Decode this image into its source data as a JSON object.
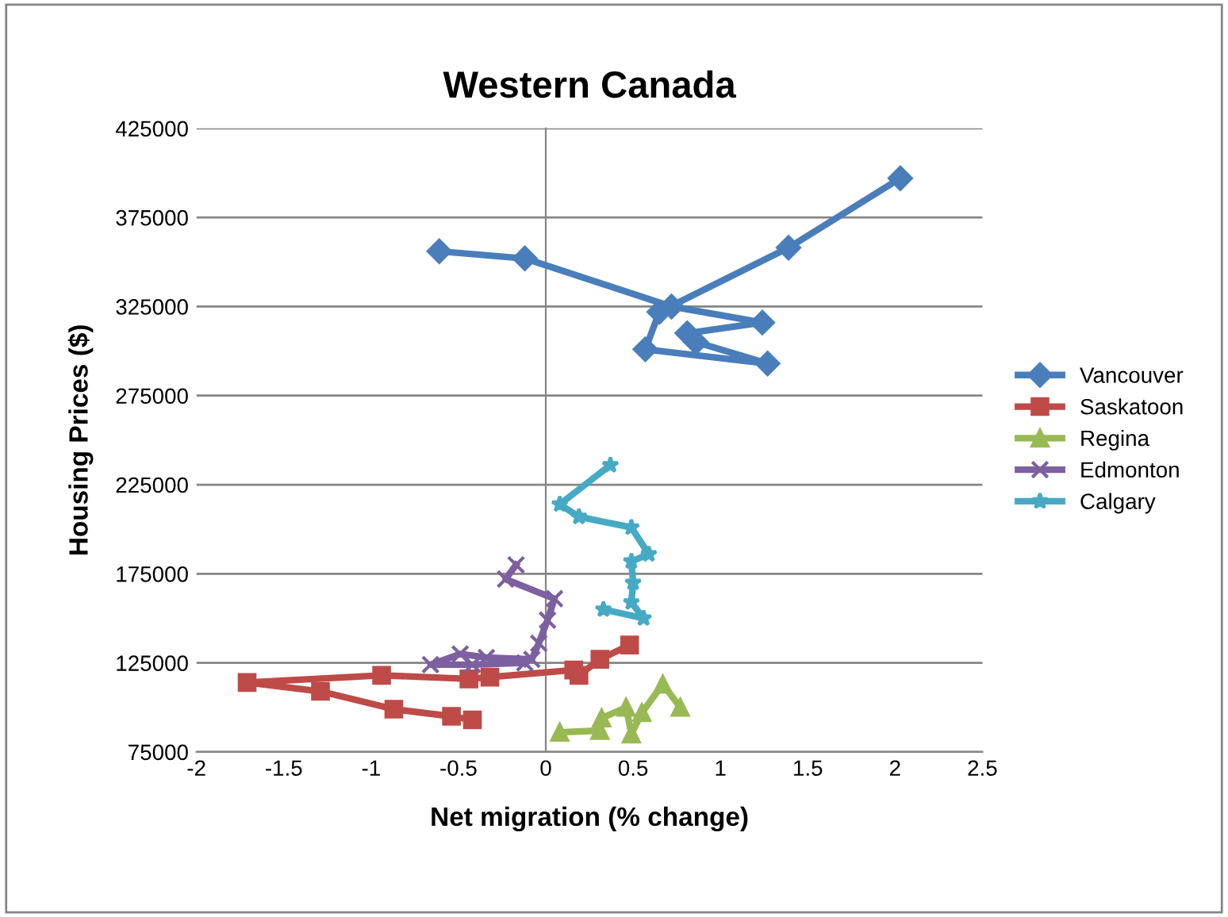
{
  "chart_data": {
    "type": "line",
    "title": "Western Canada",
    "xlabel": "Net migration (% change)",
    "ylabel": "Housing Prices ($)",
    "xlim": [
      -2,
      2.5
    ],
    "xticks": [
      -2,
      -1.5,
      -1,
      -0.5,
      0,
      0.5,
      1,
      1.5,
      2,
      2.5
    ],
    "ylim": [
      75000,
      425000
    ],
    "yticks": [
      75000,
      125000,
      175000,
      225000,
      275000,
      325000,
      375000,
      425000
    ],
    "grid": "y",
    "legend": "right",
    "line_style": "solid",
    "series": [
      {
        "name": "Vancouver",
        "color": "#4a7ebb",
        "marker": "diamond",
        "x": [
          -0.61,
          -0.12,
          0.72,
          1.24,
          0.81,
          0.86,
          1.27,
          0.57,
          0.65,
          1.39,
          2.03
        ],
        "values": [
          356000,
          352000,
          325000,
          316000,
          310000,
          305000,
          293000,
          301000,
          322000,
          358000,
          397000
        ]
      },
      {
        "name": "Saskatoon",
        "color": "#be4b48",
        "marker": "square",
        "x": [
          -0.42,
          -0.54,
          -0.87,
          -1.29,
          -1.71,
          -0.94,
          -0.44,
          -0.32,
          0.16,
          0.19,
          0.31,
          0.48
        ],
        "values": [
          93000,
          95000,
          99000,
          109000,
          114000,
          118000,
          116000,
          117000,
          121000,
          118000,
          127000,
          135000
        ]
      },
      {
        "name": "Regina",
        "color": "#98b954",
        "marker": "triangle",
        "x": [
          0.08,
          0.31,
          0.32,
          0.46,
          0.49,
          0.55,
          0.67,
          0.77
        ],
        "values": [
          86000,
          87000,
          94000,
          100000,
          85000,
          97000,
          113000,
          100000
        ]
      },
      {
        "name": "Edmonton",
        "color": "#7d60a0",
        "marker": "cross",
        "x": [
          -0.12,
          -0.42,
          -0.66,
          -0.49,
          -0.34,
          -0.08,
          -0.04,
          0.01,
          0.05,
          -0.23,
          -0.17
        ],
        "values": [
          125000,
          124000,
          124000,
          130000,
          128000,
          127000,
          136000,
          149000,
          161000,
          172000,
          180000
        ]
      },
      {
        "name": "Calgary",
        "color": "#46aac5",
        "marker": "star",
        "x": [
          0.33,
          0.56,
          0.49,
          0.5,
          0.49,
          0.59,
          0.49,
          0.19,
          0.08,
          0.37
        ],
        "values": [
          155000,
          150000,
          159000,
          170000,
          182000,
          186000,
          201000,
          207000,
          214000,
          236000
        ]
      }
    ]
  }
}
